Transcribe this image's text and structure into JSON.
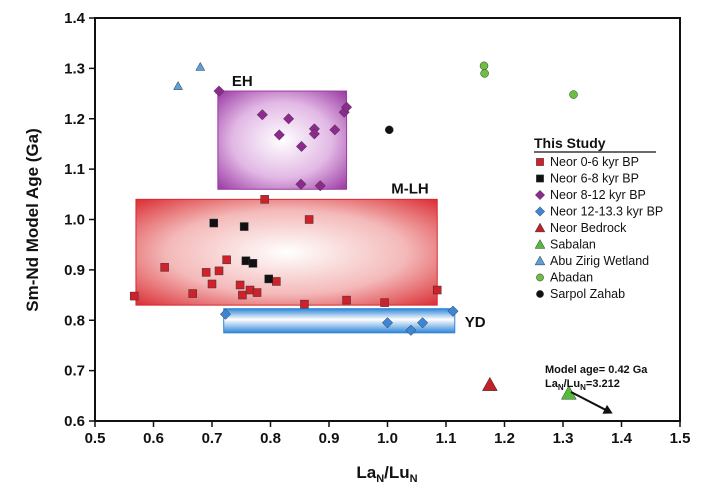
{
  "chart_data": {
    "type": "scatter",
    "xlabel_main": "La",
    "xlabel_sub1": "N",
    "xlabel_mid": "/Lu",
    "xlabel_sub2": "N",
    "ylabel": "Sm-Nd Model Age (Ga)",
    "xlim": [
      0.5,
      1.5
    ],
    "ylim": [
      0.6,
      1.4
    ],
    "x_ticks": [
      "0.5",
      "0.6",
      "0.7",
      "0.8",
      "0.9",
      "1.0",
      "1.1",
      "1.2",
      "1.3",
      "1.4",
      "1.5"
    ],
    "y_ticks": [
      "0.6",
      "0.7",
      "0.8",
      "0.9",
      "1.0",
      "1.1",
      "1.2",
      "1.3",
      "1.4"
    ],
    "legend": {
      "title": "This Study",
      "placement": "right"
    },
    "fields": [
      {
        "label": "EH",
        "x": [
          0.71,
          0.93
        ],
        "y": [
          1.06,
          1.255
        ],
        "color": "#9b3aa3"
      },
      {
        "label": "M-LH",
        "x": [
          0.57,
          1.085
        ],
        "y": [
          0.83,
          1.04
        ],
        "color": "#d9282e"
      },
      {
        "label": "YD",
        "x": [
          0.72,
          1.115
        ],
        "y": [
          0.775,
          0.823
        ],
        "color": "#2f86d8"
      }
    ],
    "series": [
      {
        "name": "Neor 0-6 kyr BP",
        "marker": "square",
        "color": "#d0202a",
        "x": [
          0.567,
          0.619,
          0.667,
          0.69,
          0.7,
          0.712,
          0.725,
          0.748,
          0.752,
          0.765,
          0.777,
          0.79,
          0.81,
          0.858,
          0.866,
          0.93,
          0.995,
          1.085
        ],
        "y": [
          0.848,
          0.905,
          0.853,
          0.895,
          0.872,
          0.898,
          0.92,
          0.87,
          0.85,
          0.86,
          0.855,
          1.04,
          0.877,
          0.832,
          1.0,
          0.84,
          0.835,
          0.86
        ]
      },
      {
        "name": "Neor 6-8 kyr BP",
        "marker": "square",
        "color": "#111111",
        "x": [
          0.703,
          0.755,
          0.758,
          0.77,
          0.797
        ],
        "y": [
          0.993,
          0.986,
          0.918,
          0.913,
          0.882
        ]
      },
      {
        "name": "Neor 8-12 kyr BP",
        "marker": "diamond",
        "color": "#8e2a8f",
        "x": [
          0.712,
          0.786,
          0.815,
          0.831,
          0.852,
          0.853,
          0.875,
          0.875,
          0.885,
          0.91,
          0.926,
          0.93
        ],
        "y": [
          1.255,
          1.208,
          1.168,
          1.2,
          1.07,
          1.145,
          1.18,
          1.17,
          1.067,
          1.178,
          1.213,
          1.223
        ]
      },
      {
        "name": "Neor 12-13.3 kyr BP",
        "marker": "diamond",
        "color": "#3d86d6",
        "x": [
          0.723,
          1.0,
          1.04,
          1.06,
          1.112
        ],
        "y": [
          0.812,
          0.795,
          0.78,
          0.795,
          0.818
        ]
      },
      {
        "name": "Neor Bedrock",
        "marker": "triangle",
        "color": "#c42027",
        "x": [
          1.175
        ],
        "y": [
          0.672
        ]
      },
      {
        "name": "Sabalan",
        "marker": "triangle",
        "color": "#55bb3a",
        "x": [
          1.31
        ],
        "y": [
          0.655
        ]
      },
      {
        "name": "Abu Zirig Wetland",
        "marker": "triangle",
        "color": "#5aa0dc",
        "x": [
          0.642,
          0.68
        ],
        "y": [
          1.265,
          1.303
        ]
      },
      {
        "name": "Abadan",
        "marker": "circle",
        "color": "#6cc040",
        "x": [
          1.165,
          1.166,
          1.318
        ],
        "y": [
          1.305,
          1.29,
          1.248
        ]
      },
      {
        "name": "Sarpol Zahab",
        "marker": "circle",
        "color": "#111111",
        "x": [
          1.003
        ],
        "y": [
          1.178
        ]
      }
    ],
    "annotation": {
      "line1": "Model age= 0.42 Ga",
      "line2_main": "La",
      "line2_sub1": "N",
      "line2_mid": "/Lu",
      "line2_sub2": "N",
      "line2_tail": "=3.212",
      "arrow_target": {
        "x": 1.385,
        "y": 0.615
      }
    }
  }
}
